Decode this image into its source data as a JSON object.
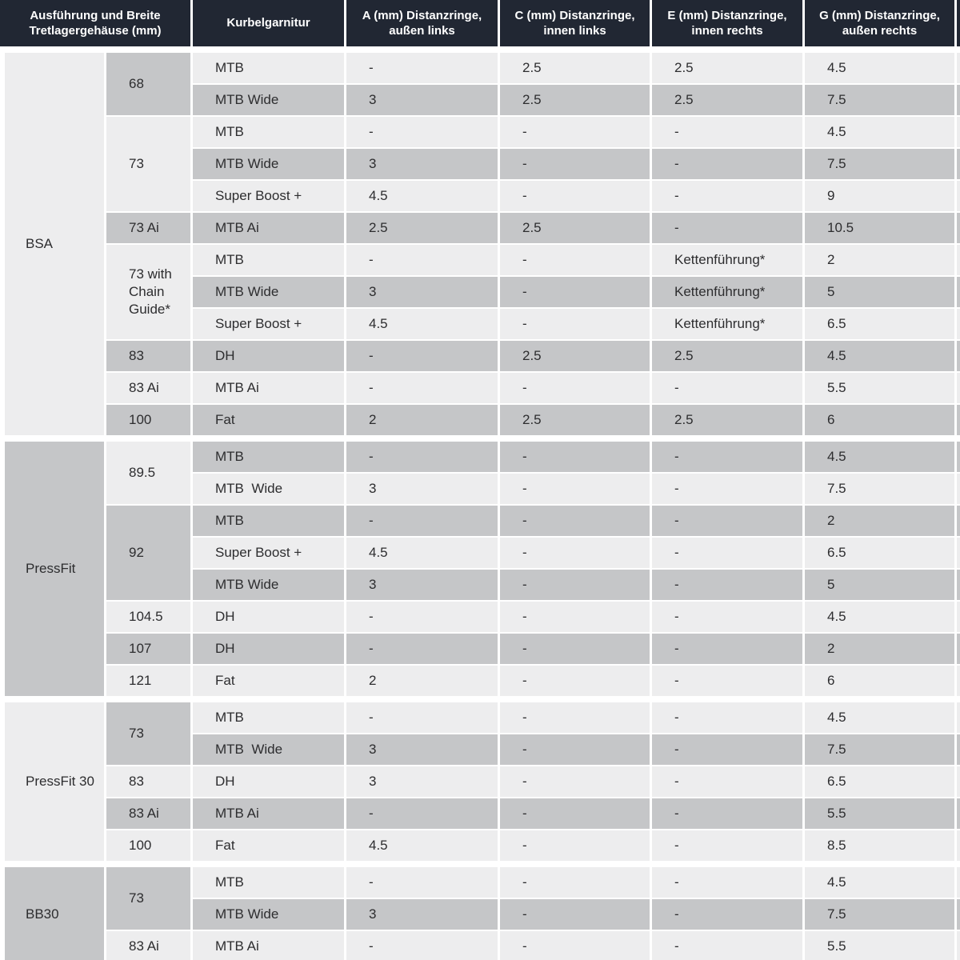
{
  "colors": {
    "header_bg": "#212733",
    "header_text": "#ffffff",
    "row_light": "#ededee",
    "row_gray": "#c5c6c8",
    "body_text": "#2d2d2f"
  },
  "chart_data": {
    "type": "table",
    "columns": [
      "Ausführung und Breite Tretlagergehäuse (mm)",
      "Kurbelgarnitur",
      "A (mm) Distanzringe, außen links",
      "C (mm) Distanzringe, innen links",
      "E (mm) Distanzringe, innen rechts",
      "G (mm) Distanzringe, außen rechts"
    ],
    "header_labels": {
      "col1_line1": "Ausführung und Breite",
      "col1_line2": "Tretlagergehäuse (mm)"
    },
    "sections": [
      {
        "standard": "BSA",
        "shade": "light",
        "groups": [
          {
            "width": "68",
            "shade": "gray",
            "rows": [
              {
                "crankset": "MTB",
                "a": "-",
                "c": "2.5",
                "e": "2.5",
                "g": "4.5",
                "shade": "light"
              },
              {
                "crankset": "MTB Wide",
                "a": "3",
                "c": "2.5",
                "e": "2.5",
                "g": "7.5",
                "shade": "gray"
              }
            ]
          },
          {
            "width": "73",
            "shade": "light",
            "rows": [
              {
                "crankset": "MTB",
                "a": "-",
                "c": "-",
                "e": "-",
                "g": "4.5",
                "shade": "light"
              },
              {
                "crankset": "MTB Wide",
                "a": "3",
                "c": "-",
                "e": "-",
                "g": "7.5",
                "shade": "gray"
              },
              {
                "crankset": "Super Boost +",
                "a": "4.5",
                "c": "-",
                "e": "-",
                "g": "9",
                "shade": "light"
              }
            ]
          },
          {
            "width": "73 Ai",
            "shade": "gray",
            "rows": [
              {
                "crankset": "MTB Ai",
                "a": "2.5",
                "c": "2.5",
                "e": "-",
                "g": "10.5",
                "shade": "gray"
              }
            ]
          },
          {
            "width": "73 with Chain Guide*",
            "shade": "light",
            "rows": [
              {
                "crankset": "MTB",
                "a": "-",
                "c": "-",
                "e": "Kettenführung*",
                "g": "2",
                "shade": "light"
              },
              {
                "crankset": "MTB Wide",
                "a": "3",
                "c": "-",
                "e": "Kettenführung*",
                "g": "5",
                "shade": "gray"
              },
              {
                "crankset": "Super Boost +",
                "a": "4.5",
                "c": "-",
                "e": "Kettenführung*",
                "g": "6.5",
                "shade": "light"
              }
            ]
          },
          {
            "width": "83",
            "shade": "gray",
            "rows": [
              {
                "crankset": "DH",
                "a": "-",
                "c": "2.5",
                "e": "2.5",
                "g": "4.5",
                "shade": "gray"
              }
            ]
          },
          {
            "width": "83 Ai",
            "shade": "light",
            "rows": [
              {
                "crankset": "MTB Ai",
                "a": "-",
                "c": "-",
                "e": "-",
                "g": "5.5",
                "shade": "light"
              }
            ]
          },
          {
            "width": "100",
            "shade": "gray",
            "rows": [
              {
                "crankset": "Fat",
                "a": "2",
                "c": "2.5",
                "e": "2.5",
                "g": "6",
                "shade": "gray"
              }
            ]
          }
        ]
      },
      {
        "standard": "PressFit",
        "shade": "gray",
        "groups": [
          {
            "width": "89.5",
            "shade": "light",
            "rows": [
              {
                "crankset": "MTB",
                "a": "-",
                "c": "-",
                "e": "-",
                "g": "4.5",
                "shade": "gray"
              },
              {
                "crankset": "MTB  Wide",
                "a": "3",
                "c": "-",
                "e": "-",
                "g": "7.5",
                "shade": "light"
              }
            ]
          },
          {
            "width": "92",
            "shade": "gray",
            "rows": [
              {
                "crankset": "MTB",
                "a": "-",
                "c": "-",
                "e": "-",
                "g": "2",
                "shade": "gray"
              },
              {
                "crankset": "Super Boost +",
                "a": "4.5",
                "c": "-",
                "e": "-",
                "g": "6.5",
                "shade": "light"
              },
              {
                "crankset": "MTB Wide",
                "a": "3",
                "c": "-",
                "e": "-",
                "g": "5",
                "shade": "gray"
              }
            ]
          },
          {
            "width": "104.5",
            "shade": "light",
            "rows": [
              {
                "crankset": "DH",
                "a": "-",
                "c": "-",
                "e": "-",
                "g": "4.5",
                "shade": "light"
              }
            ]
          },
          {
            "width": "107",
            "shade": "gray",
            "rows": [
              {
                "crankset": "DH",
                "a": "-",
                "c": "-",
                "e": "-",
                "g": "2",
                "shade": "gray"
              }
            ]
          },
          {
            "width": "121",
            "shade": "light",
            "rows": [
              {
                "crankset": "Fat",
                "a": "2",
                "c": "-",
                "e": "-",
                "g": "6",
                "shade": "light"
              }
            ]
          }
        ]
      },
      {
        "standard": "PressFit 30",
        "shade": "light",
        "groups": [
          {
            "width": "73",
            "shade": "gray",
            "rows": [
              {
                "crankset": "MTB",
                "a": "-",
                "c": "-",
                "e": "-",
                "g": "4.5",
                "shade": "light"
              },
              {
                "crankset": "MTB  Wide",
                "a": "3",
                "c": "-",
                "e": "-",
                "g": "7.5",
                "shade": "gray"
              }
            ]
          },
          {
            "width": "83",
            "shade": "light",
            "rows": [
              {
                "crankset": "DH",
                "a": "3",
                "c": "-",
                "e": "-",
                "g": "6.5",
                "shade": "light"
              }
            ]
          },
          {
            "width": "83 Ai",
            "shade": "gray",
            "rows": [
              {
                "crankset": "MTB Ai",
                "a": "-",
                "c": "-",
                "e": "-",
                "g": "5.5",
                "shade": "gray"
              }
            ]
          },
          {
            "width": "100",
            "shade": "light",
            "rows": [
              {
                "crankset": "Fat",
                "a": "4.5",
                "c": "-",
                "e": "-",
                "g": "8.5",
                "shade": "light"
              }
            ]
          }
        ]
      },
      {
        "standard": "BB30",
        "shade": "gray",
        "groups": [
          {
            "width": "73",
            "shade": "gray",
            "rows": [
              {
                "crankset": "MTB",
                "a": "-",
                "c": "-",
                "e": "-",
                "g": "4.5",
                "shade": "light"
              },
              {
                "crankset": "MTB Wide",
                "a": "3",
                "c": "-",
                "e": "-",
                "g": "7.5",
                "shade": "gray"
              }
            ]
          },
          {
            "width": "83 Ai",
            "shade": "light",
            "rows": [
              {
                "crankset": "MTB Ai",
                "a": "-",
                "c": "-",
                "e": "-",
                "g": "5.5",
                "shade": "light"
              }
            ]
          }
        ]
      }
    ]
  }
}
